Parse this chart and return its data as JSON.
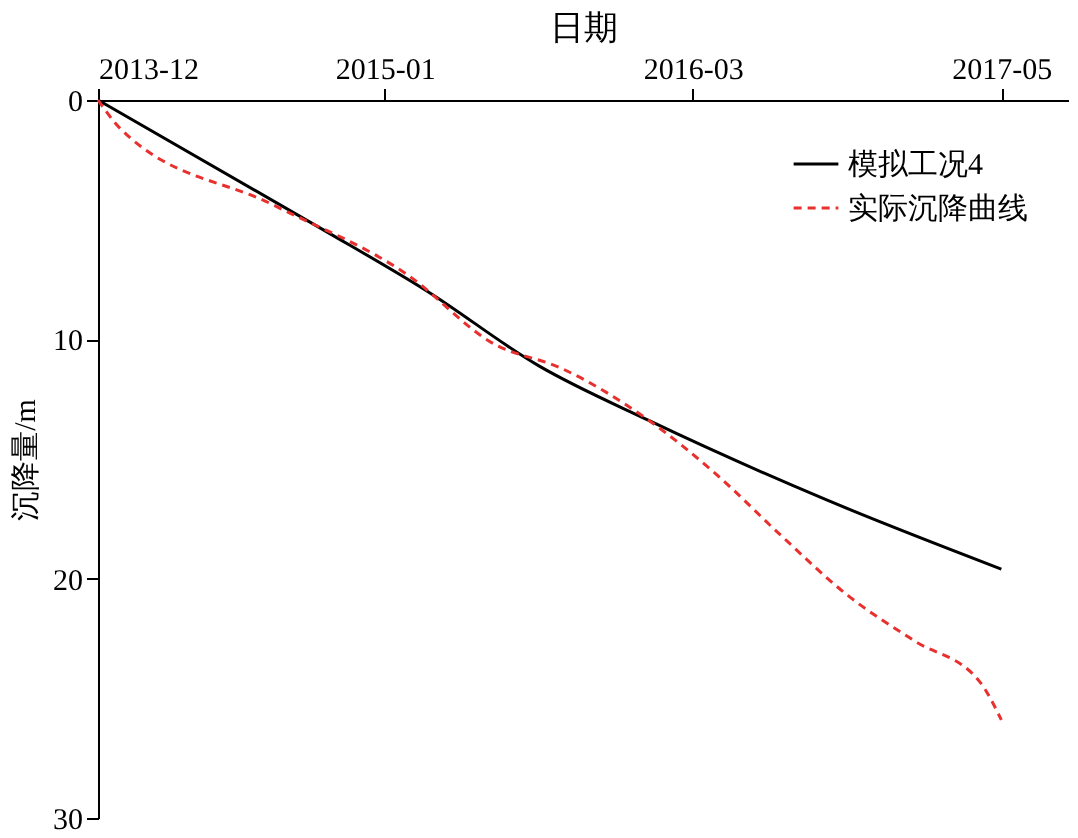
{
  "chart_data": {
    "type": "line",
    "xlabel": "日期",
    "ylabel": "沉降量/m",
    "xlim": [
      "2013-12",
      "2017-08"
    ],
    "xticks": [
      "2013-12",
      "2015-01",
      "2016-03",
      "2017-05"
    ],
    "ylim": [
      30,
      0
    ],
    "yticks": [
      0,
      10,
      20,
      30
    ],
    "grid": false,
    "legend": "top right",
    "marker": "none",
    "series": [
      {
        "name": "模拟工况4",
        "color": "#000000",
        "line_style": "solid",
        "x": [
          "2013-12",
          "2014-10",
          "2015-03",
          "2015-08",
          "2016-01",
          "2016-09",
          "2017-05"
        ],
        "values": [
          0,
          5.3,
          8.0,
          11.1,
          13.4,
          16.7,
          19.6
        ]
      },
      {
        "name": "实际沉降曲线",
        "color": "#e8302e",
        "line_style": "dashed",
        "x": [
          "2013-12",
          "2014-01",
          "2014-08",
          "2015-02",
          "2015-06",
          "2015-09",
          "2016-01",
          "2016-04",
          "2016-07",
          "2016-10",
          "2017-01",
          "2017-04",
          "2017-05"
        ],
        "values": [
          0,
          1.2,
          4.4,
          7.3,
          10.2,
          11.2,
          13.4,
          15.6,
          18.2,
          20.7,
          22.6,
          24.3,
          25.9
        ]
      }
    ]
  }
}
